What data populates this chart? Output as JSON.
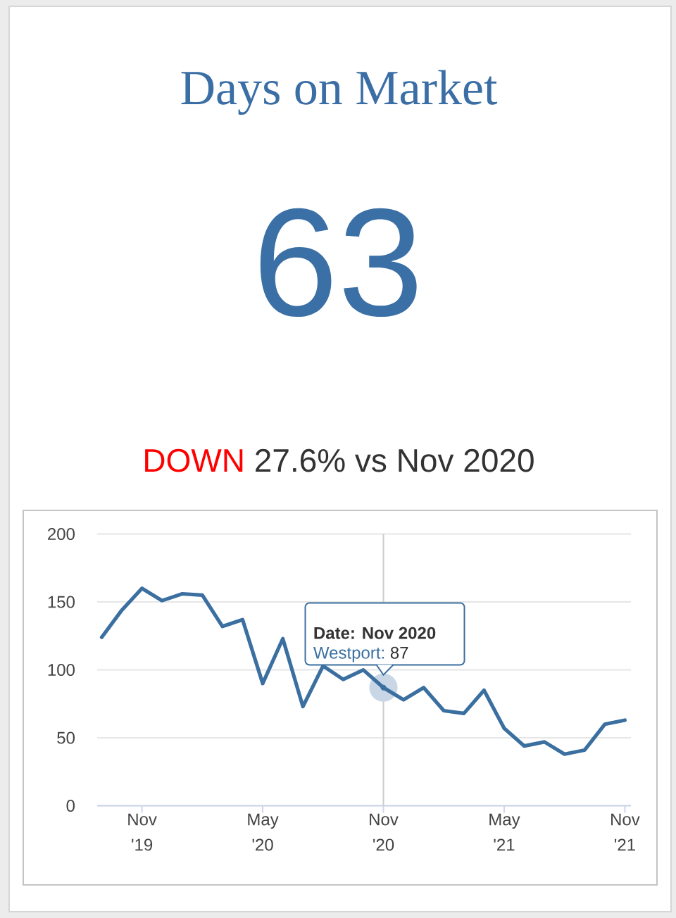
{
  "chart_data": {
    "type": "line",
    "title": "Days on Market",
    "annotations": [
      "63",
      "DOWN",
      "27.6% vs Nov 2020",
      {
        "text": "Date: Nov 2020",
        "x": "2020-11",
        "y": 87
      },
      {
        "text": "Westport:",
        "x": "2020-11",
        "y": 87
      },
      {
        "text": "87",
        "x": "2020-11",
        "y": 87
      }
    ],
    "x": [
      "2019-09",
      "2019-10",
      "2019-11",
      "2019-12",
      "2020-01",
      "2020-02",
      "2020-03",
      "2020-04",
      "2020-05",
      "2020-06",
      "2020-07",
      "2020-08",
      "2020-09",
      "2020-10",
      "2020-11",
      "2020-12",
      "2021-01",
      "2021-02",
      "2021-03",
      "2021-04",
      "2021-05",
      "2021-06",
      "2021-07",
      "2021-08",
      "2021-09",
      "2021-10",
      "2021-11"
    ],
    "values": [
      124,
      144,
      160,
      151,
      156,
      155,
      132,
      137,
      90,
      123,
      73,
      103,
      93,
      100,
      87,
      78,
      87,
      70,
      68,
      85,
      57,
      44,
      47,
      38,
      41,
      60,
      63
    ],
    "color": "#3b6fa0",
    "xlim": [
      "2019-08-25",
      "2021-11-10"
    ],
    "xticks": [
      {
        "value": "2019-11",
        "label": "Nov\n'19"
      },
      {
        "value": "2020-05",
        "label": "May\n'20"
      },
      {
        "value": "2020-11",
        "label": "Nov\n'20"
      },
      {
        "value": "2021-05",
        "label": "May\n'21"
      },
      {
        "value": "2021-11",
        "label": "Nov\n'21"
      }
    ],
    "ylim": [
      0,
      200
    ],
    "yticks": [
      0,
      50,
      100,
      150,
      200
    ],
    "grid": "y",
    "line_style": "solid",
    "ref_lines": [
      {
        "axis": "x",
        "value": "2020-11",
        "color": "#cccccc"
      }
    ]
  }
}
